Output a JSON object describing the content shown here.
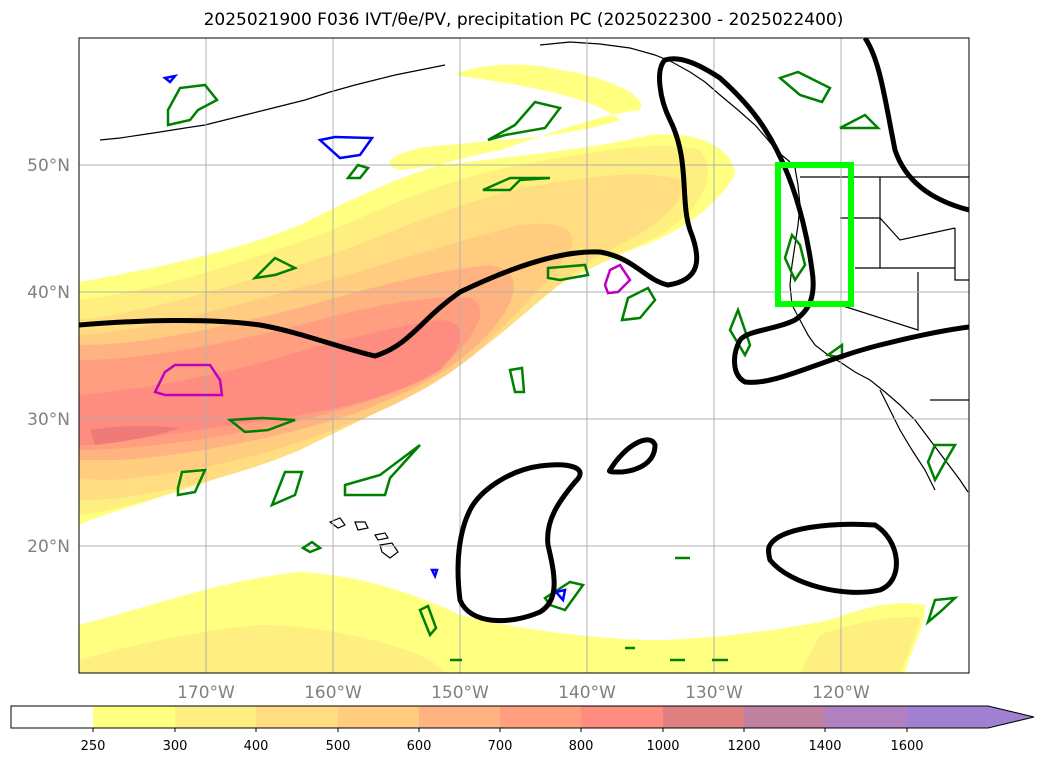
{
  "title": "2025021900 F036 IVT/θe/PV, precipitation PC (2025022300 - 2025022400)",
  "map": {
    "projection": "PlateCarree",
    "lon_range": [
      -180,
      -110
    ],
    "lat_range": [
      10,
      60
    ],
    "lon_labels": [
      "170°W",
      "160°W",
      "150°W",
      "140°W",
      "130°W",
      "120°W"
    ],
    "lat_labels": [
      "50°N",
      "40°N",
      "30°N",
      "20°N"
    ],
    "gridlines": true
  },
  "colorbar": {
    "levels": [
      "250",
      "300",
      "400",
      "500",
      "600",
      "700",
      "800",
      "1000",
      "1200",
      "1400",
      "1600"
    ],
    "colors": [
      "#ffff80",
      "#ffee80",
      "#ffdd80",
      "#ffcc80",
      "#ffb380",
      "#ff9f80",
      "#ff8c80",
      "#e08080",
      "#c080a0",
      "#b080c0",
      "#a080d0"
    ],
    "extend": "max"
  },
  "highlight_box": {
    "color": "#00ff00",
    "lon": [
      -125,
      -119
    ],
    "lat": [
      39,
      50
    ]
  },
  "contour_colors": {
    "theta_e": "#000000",
    "pv_green": "#008000",
    "pv_blue": "#0000ff",
    "pv_magenta": "#c000c0"
  }
}
